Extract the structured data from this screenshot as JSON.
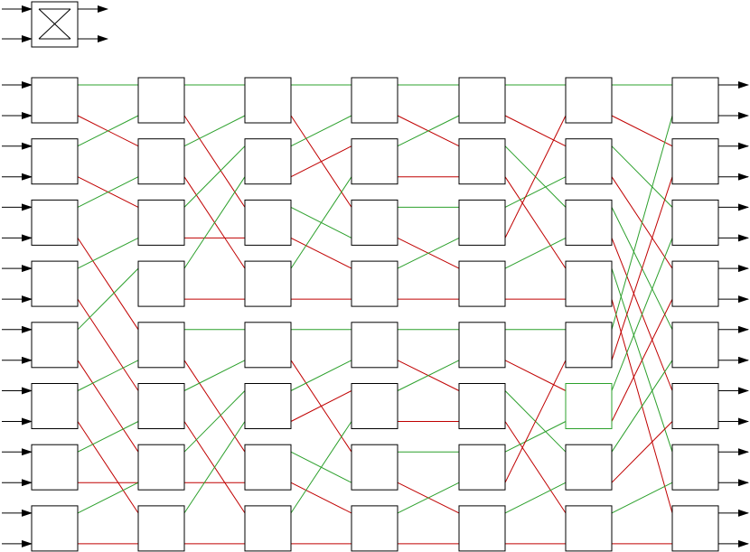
{
  "colors": {
    "stroke": "#000000",
    "green_link": "#2ca02c",
    "red_link": "#c00000",
    "highlight_box": "#2ca02c",
    "background": "#ffffff"
  },
  "legend": {
    "symbol": "crossbar-switch-icon",
    "inputs": 2,
    "outputs": 2
  },
  "network": {
    "stages": 7,
    "switches_per_stage": 8,
    "ports_per_switch": 2,
    "highlighted_switch": {
      "stage": 5,
      "row": 5
    },
    "links": [
      [
        [
          0,
          0,
          "g"
        ],
        [
          0,
          1,
          "r"
        ],
        [
          1,
          0,
          "g"
        ],
        [
          1,
          2,
          "r"
        ],
        [
          2,
          1,
          "g"
        ],
        [
          2,
          4,
          "r"
        ],
        [
          3,
          2,
          "g"
        ],
        [
          3,
          5,
          "r"
        ],
        [
          4,
          3,
          "g"
        ],
        [
          4,
          6,
          "r"
        ],
        [
          5,
          4,
          "g"
        ],
        [
          5,
          7,
          "r"
        ],
        [
          6,
          5,
          "g"
        ],
        [
          6,
          6,
          "r"
        ],
        [
          7,
          6,
          "g"
        ],
        [
          7,
          7,
          "r"
        ]
      ],
      [
        [
          0,
          0,
          "g"
        ],
        [
          0,
          2,
          "r"
        ],
        [
          1,
          0,
          "g"
        ],
        [
          1,
          3,
          "r"
        ],
        [
          2,
          1,
          "g"
        ],
        [
          2,
          2,
          "r"
        ],
        [
          3,
          1,
          "g"
        ],
        [
          3,
          3,
          "r"
        ],
        [
          4,
          4,
          "g"
        ],
        [
          4,
          6,
          "r"
        ],
        [
          5,
          4,
          "g"
        ],
        [
          5,
          7,
          "r"
        ],
        [
          6,
          5,
          "g"
        ],
        [
          6,
          6,
          "r"
        ],
        [
          7,
          5,
          "g"
        ],
        [
          7,
          7,
          "r"
        ]
      ],
      [
        [
          0,
          0,
          "g"
        ],
        [
          0,
          2,
          "r"
        ],
        [
          1,
          0,
          "g"
        ],
        [
          1,
          1,
          "r"
        ],
        [
          2,
          2,
          "g"
        ],
        [
          2,
          3,
          "r"
        ],
        [
          3,
          1,
          "g"
        ],
        [
          3,
          3,
          "r"
        ],
        [
          4,
          4,
          "g"
        ],
        [
          4,
          6,
          "r"
        ],
        [
          5,
          4,
          "g"
        ],
        [
          5,
          5,
          "r"
        ],
        [
          6,
          6,
          "g"
        ],
        [
          6,
          7,
          "r"
        ],
        [
          7,
          5,
          "g"
        ],
        [
          7,
          7,
          "r"
        ]
      ],
      [
        [
          0,
          0,
          "g"
        ],
        [
          0,
          1,
          "r"
        ],
        [
          1,
          0,
          "g"
        ],
        [
          1,
          1,
          "r"
        ],
        [
          2,
          2,
          "g"
        ],
        [
          2,
          3,
          "r"
        ],
        [
          3,
          2,
          "g"
        ],
        [
          3,
          3,
          "r"
        ],
        [
          4,
          4,
          "g"
        ],
        [
          4,
          5,
          "r"
        ],
        [
          5,
          4,
          "g"
        ],
        [
          5,
          5,
          "r"
        ],
        [
          6,
          6,
          "g"
        ],
        [
          6,
          7,
          "r"
        ],
        [
          7,
          6,
          "g"
        ],
        [
          7,
          7,
          "r"
        ]
      ],
      [
        [
          0,
          0,
          "g"
        ],
        [
          0,
          1,
          "r"
        ],
        [
          1,
          2,
          "g"
        ],
        [
          1,
          3,
          "r"
        ],
        [
          2,
          1,
          "g"
        ],
        [
          2,
          0,
          "r"
        ],
        [
          3,
          2,
          "g"
        ],
        [
          3,
          3,
          "r"
        ],
        [
          4,
          4,
          "g"
        ],
        [
          4,
          5,
          "r"
        ],
        [
          5,
          6,
          "g"
        ],
        [
          5,
          7,
          "r"
        ],
        [
          6,
          5,
          "g"
        ],
        [
          6,
          4,
          "r"
        ],
        [
          7,
          6,
          "g"
        ],
        [
          7,
          7,
          "r"
        ]
      ],
      [
        [
          0,
          0,
          "g"
        ],
        [
          0,
          1,
          "r"
        ],
        [
          1,
          2,
          "g"
        ],
        [
          1,
          3,
          "r"
        ],
        [
          2,
          4,
          "g"
        ],
        [
          2,
          5,
          "r"
        ],
        [
          3,
          6,
          "g"
        ],
        [
          3,
          7,
          "r"
        ],
        [
          4,
          0,
          "g"
        ],
        [
          4,
          1,
          "r"
        ],
        [
          5,
          2,
          "g"
        ],
        [
          5,
          3,
          "r"
        ],
        [
          6,
          4,
          "g"
        ],
        [
          6,
          5,
          "r"
        ],
        [
          7,
          6,
          "g"
        ],
        [
          7,
          7,
          "r"
        ]
      ]
    ]
  }
}
